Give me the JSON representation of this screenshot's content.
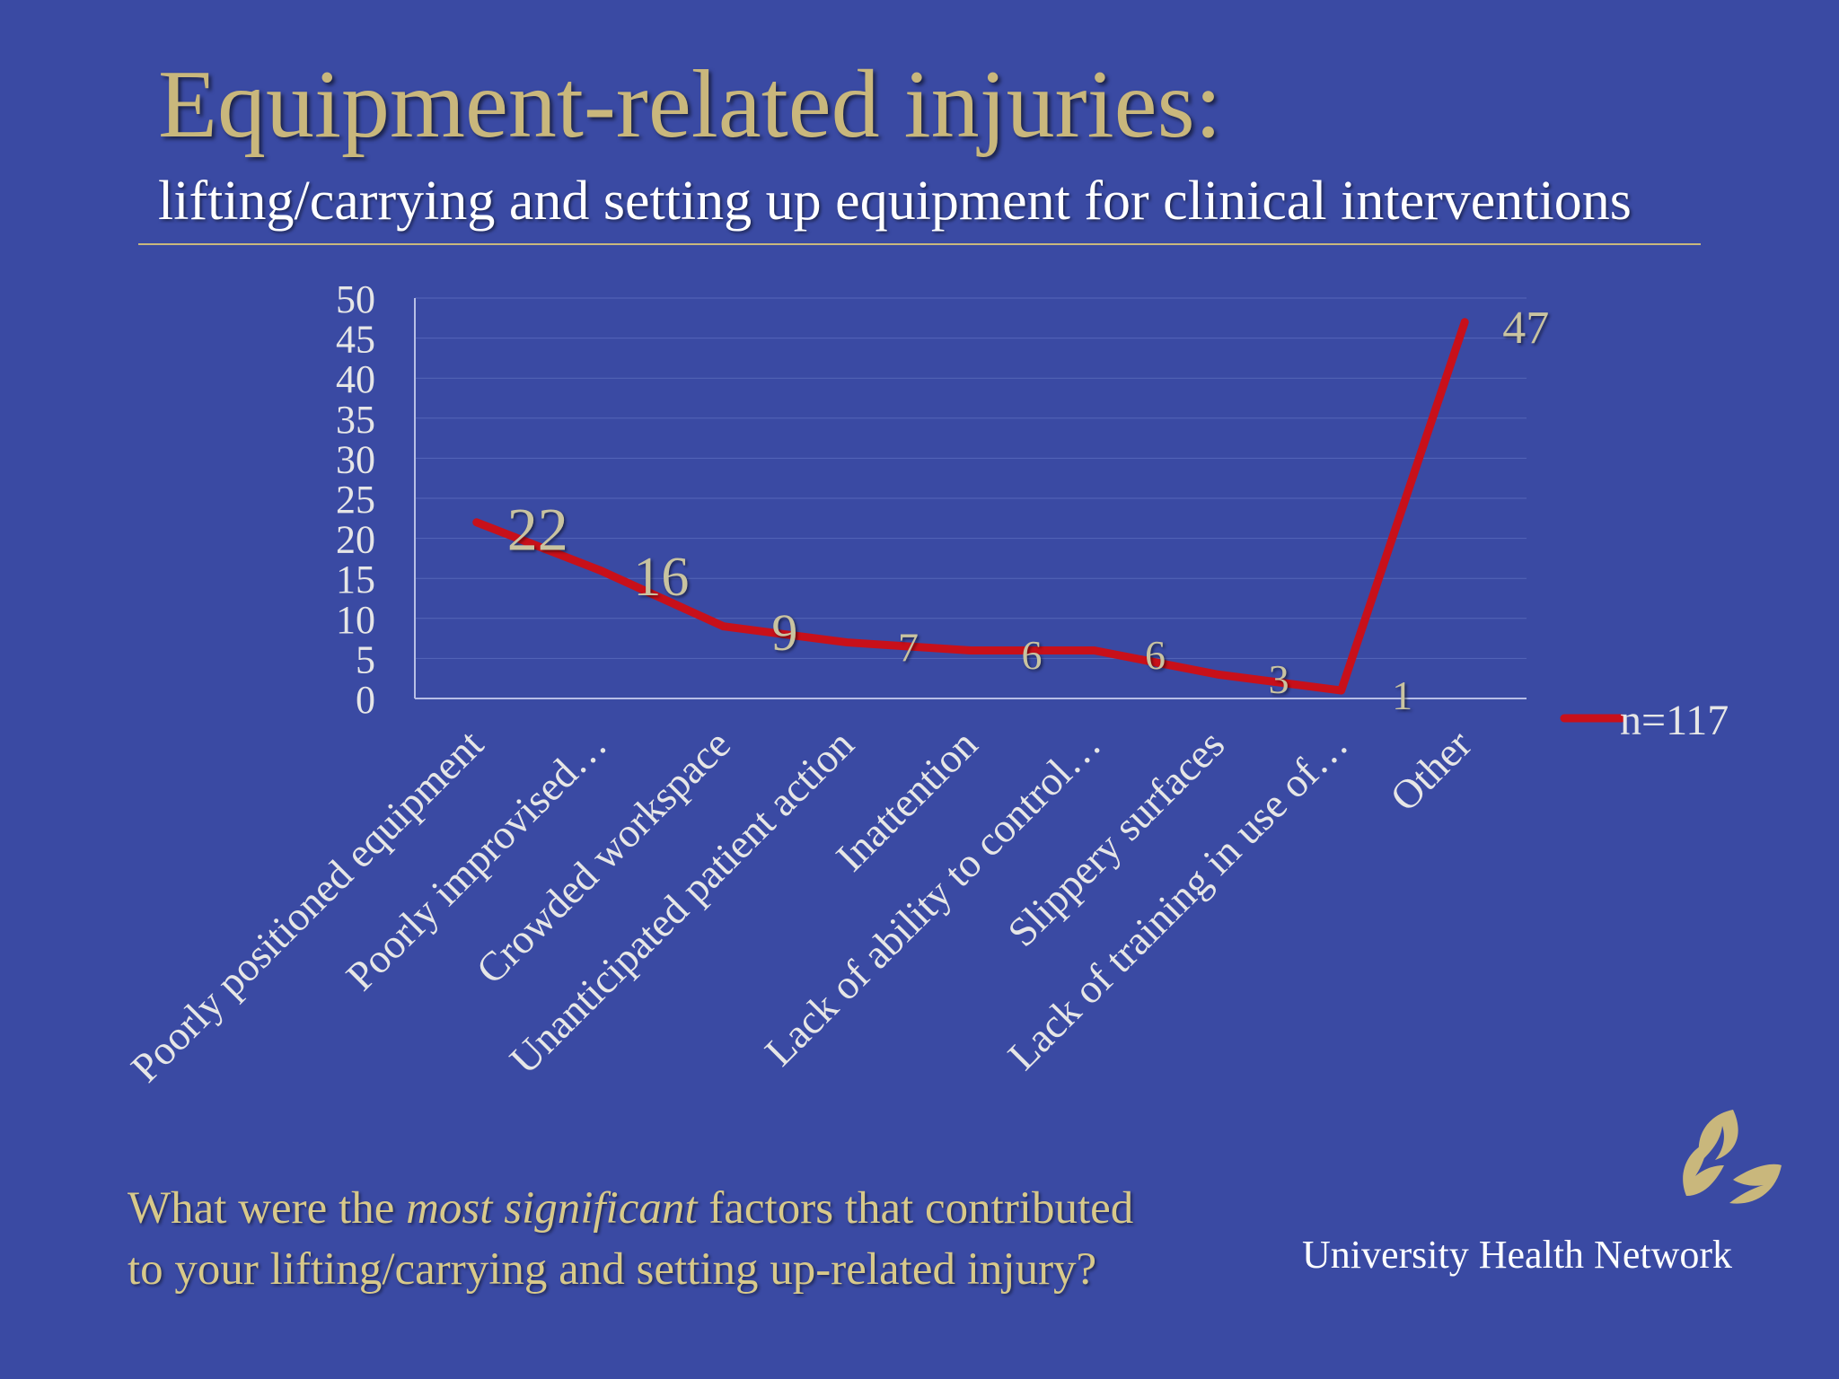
{
  "slide": {
    "title": "Equipment-related injuries:",
    "subtitle": "lifting/carrying and setting up equipment for clinical interventions",
    "question_part1": "What were the ",
    "question_emphasis": "most significant",
    "question_part2": " factors that contributed",
    "question_line2": "to your lifting/carrying and setting up-related injury?",
    "organization": "University Health Network"
  },
  "colors": {
    "background": "#3a4aa3",
    "title": "#c9b77c",
    "line": "#c8101a",
    "label_text": "#e6e6e6",
    "data_label": "#c9c3a0"
  },
  "chart_data": {
    "type": "line",
    "categories": [
      "Poorly positioned equipment",
      "Poorly improvised…",
      "Crowded workspace",
      "Unanticipated patient action",
      "Inattention",
      "Lack of ability to control…",
      "Slippery surfaces",
      "Lack of training in use of…",
      "Other"
    ],
    "series": [
      {
        "name": "n=117",
        "values": [
          22,
          16,
          9,
          7,
          6,
          6,
          3,
          1,
          47
        ]
      }
    ],
    "data_labels": [
      "22",
      "16",
      "9",
      "7",
      "6",
      "6",
      "3",
      "1",
      "47"
    ],
    "y_ticks": [
      "0",
      "5",
      "10",
      "15",
      "20",
      "25",
      "30",
      "35",
      "40",
      "45",
      "50"
    ],
    "ylim": [
      0,
      50
    ],
    "grid": true,
    "legend": "right",
    "title": "",
    "xlabel": "",
    "ylabel": ""
  }
}
